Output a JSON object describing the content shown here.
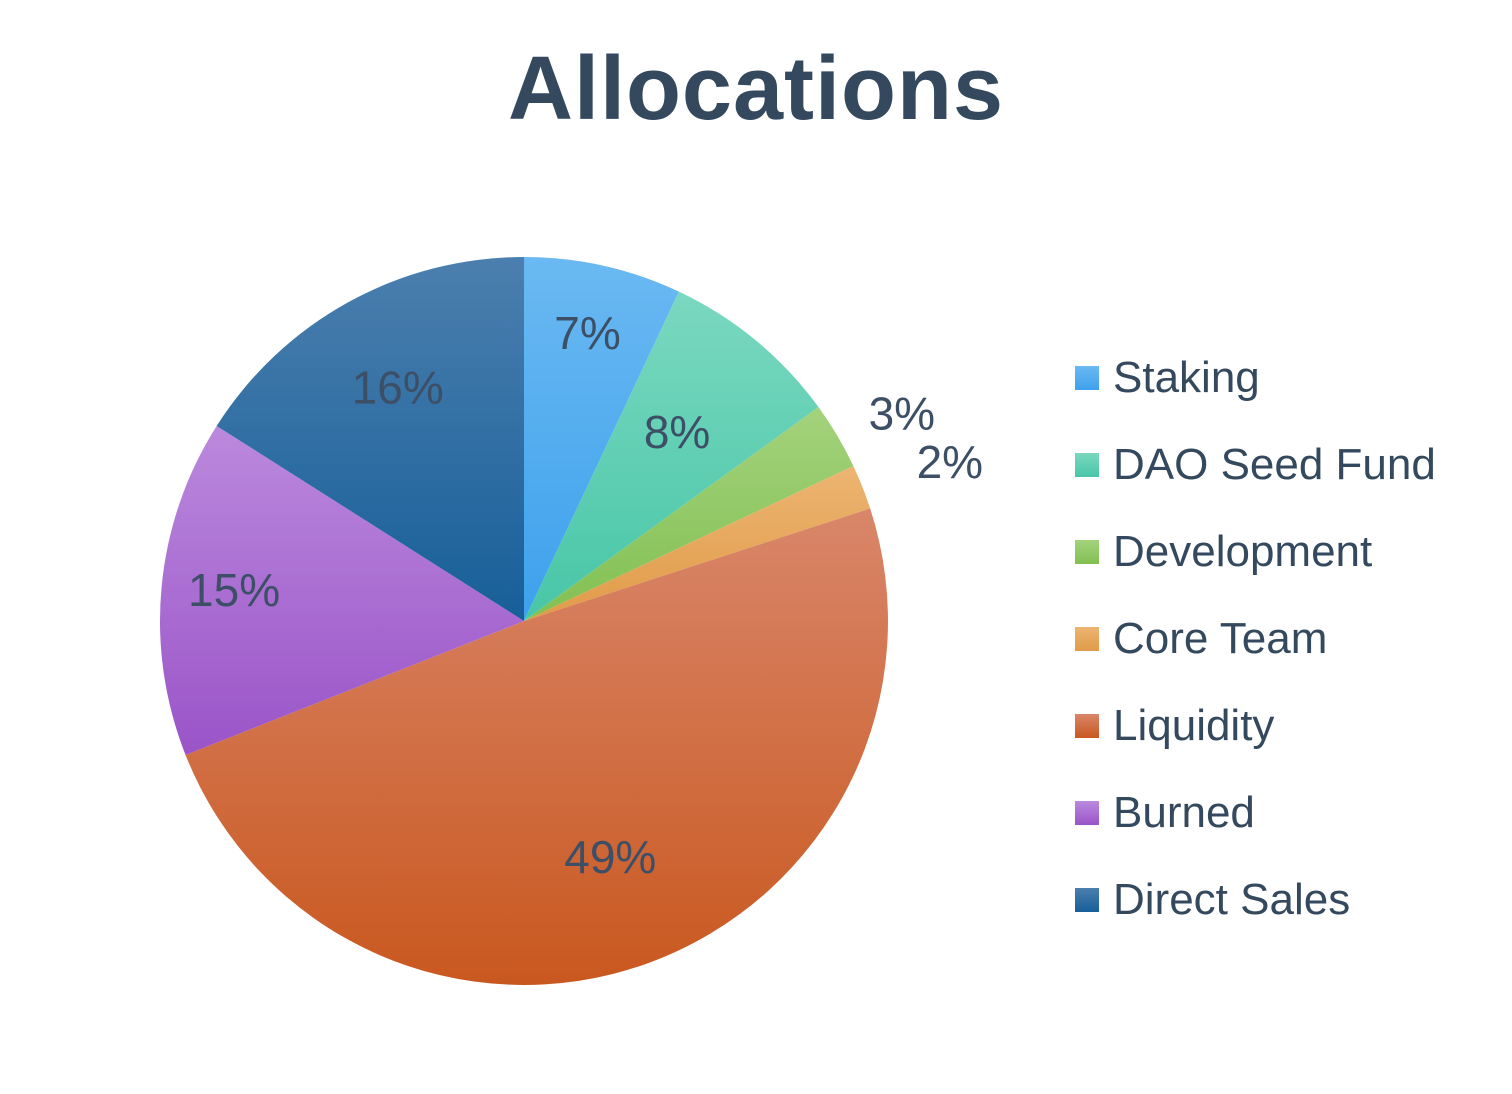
{
  "chart_data": {
    "type": "pie",
    "title": "Allocations",
    "legend_position": "right",
    "slices": [
      {
        "label": "Staking",
        "value": 7,
        "display": "7%",
        "color": "#3ea1ec",
        "color_light": "#6ab9f2"
      },
      {
        "label": "DAO Seed Fund",
        "value": 8,
        "display": "8%",
        "color": "#48c6a7",
        "color_light": "#7ad8c0"
      },
      {
        "label": "Development",
        "value": 3,
        "display": "3%",
        "color": "#82c052",
        "color_light": "#a3d27c"
      },
      {
        "label": "Core Team",
        "value": 2,
        "display": "2%",
        "color": "#e09b48",
        "color_light": "#ecb572"
      },
      {
        "label": "Liquidity",
        "value": 49,
        "display": "49%",
        "color": "#c9581f",
        "color_light": "#d9866a"
      },
      {
        "label": "Burned",
        "value": 15,
        "display": "15%",
        "color": "#9a54c8",
        "color_light": "#bb89dd"
      },
      {
        "label": "Direct Sales",
        "value": 16,
        "display": "16%",
        "color": "#175f99",
        "color_light": "#4b7fae"
      }
    ]
  }
}
